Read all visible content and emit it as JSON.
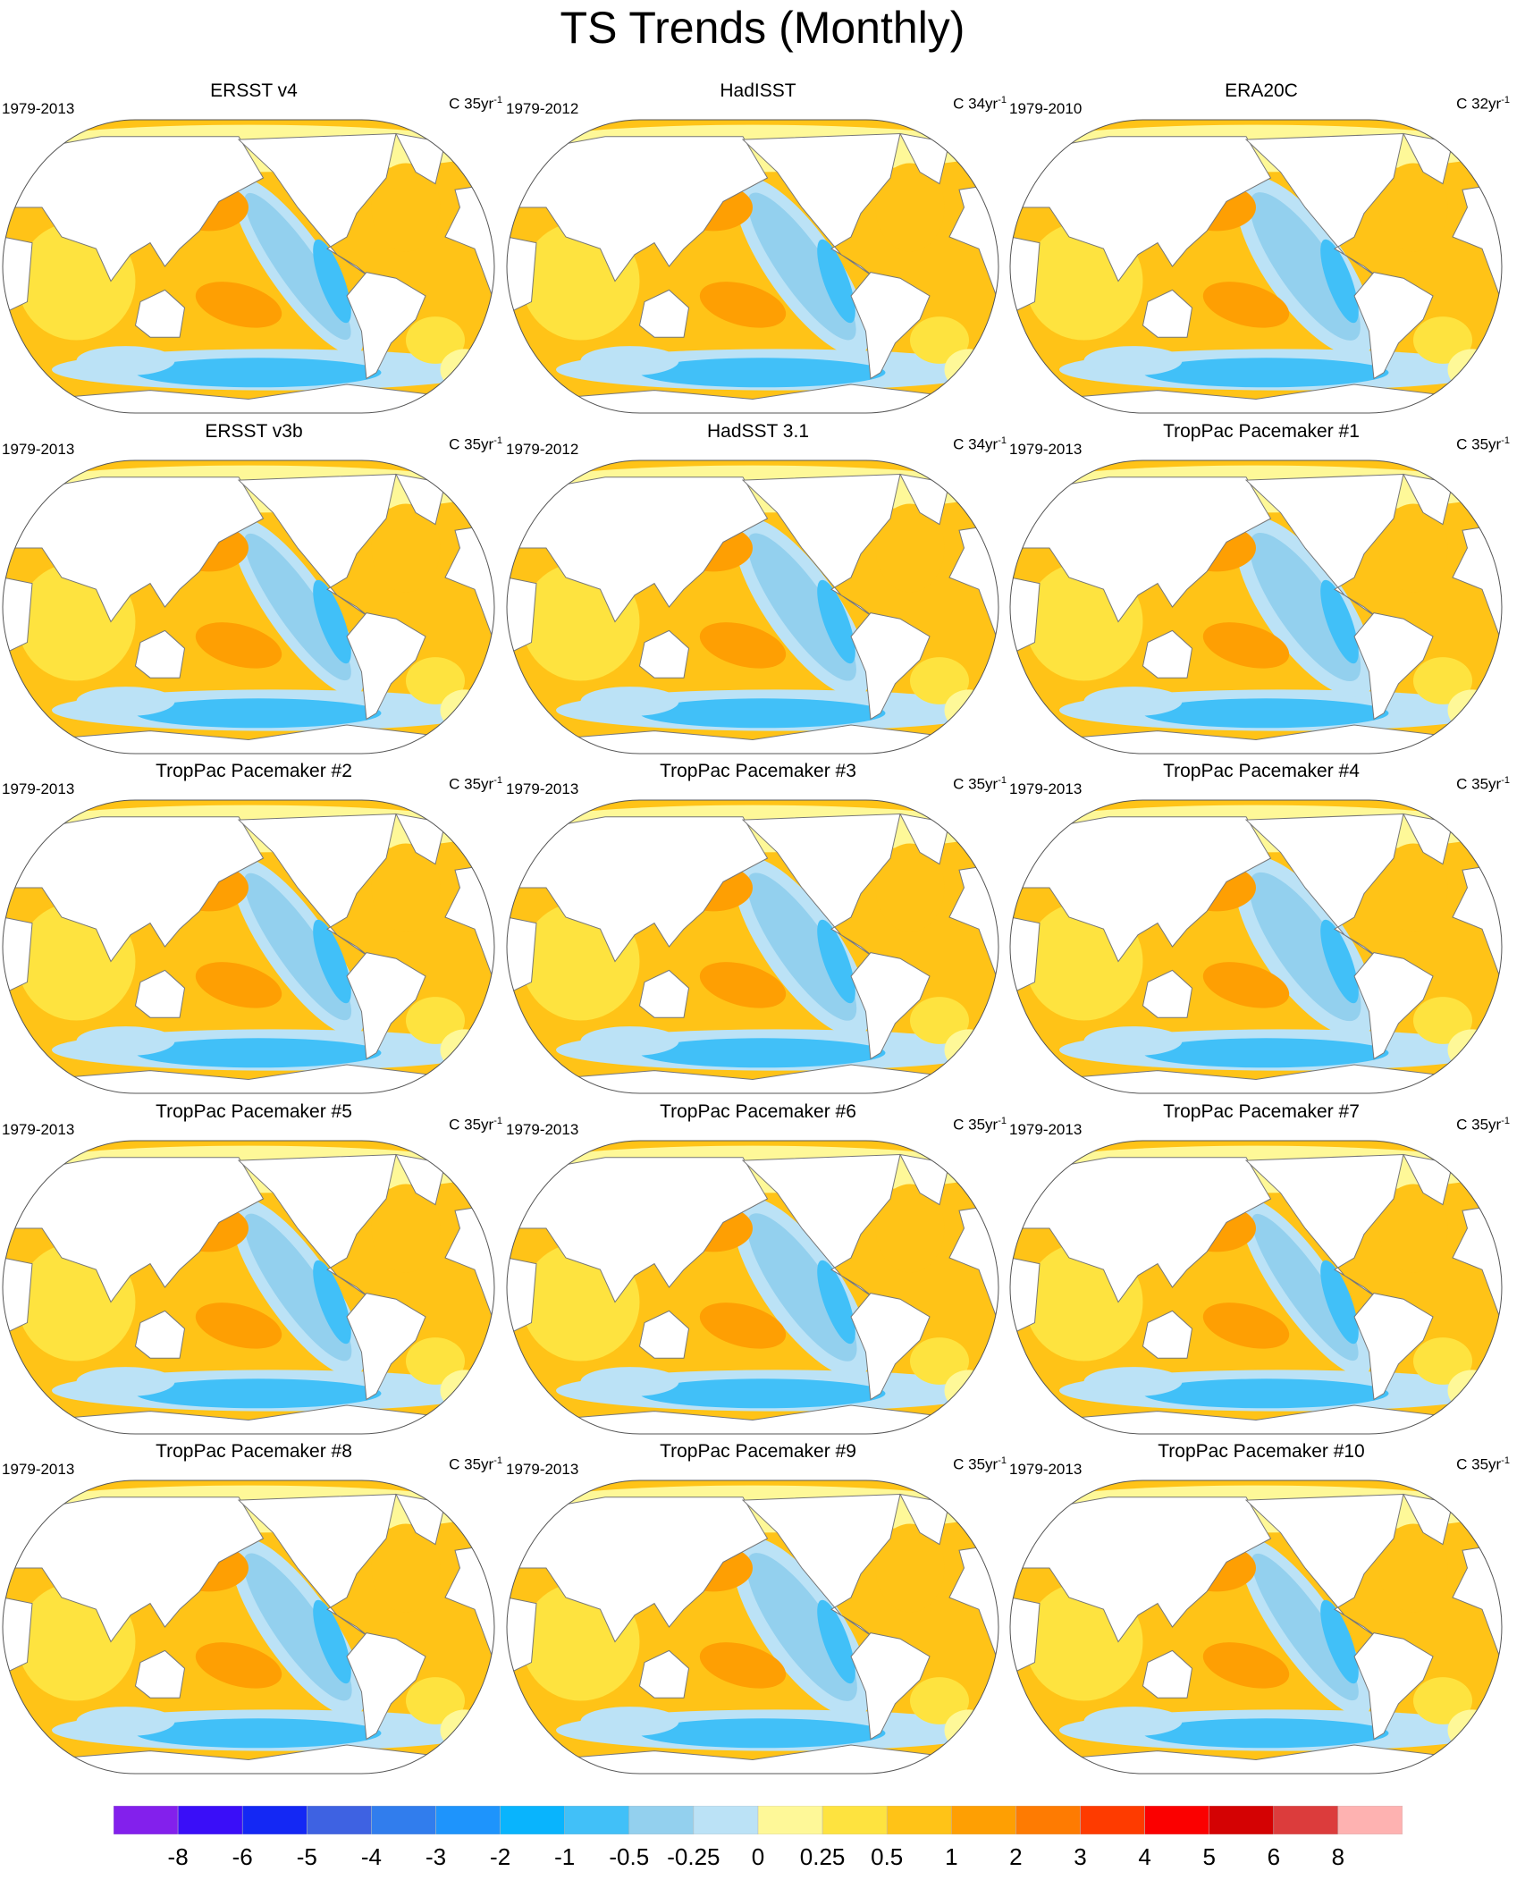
{
  "title": "TS Trends (Monthly)",
  "panels": [
    {
      "title": "ERSST v4",
      "period": "1979-2013",
      "units": "C 35yr",
      "units_exp": "-1"
    },
    {
      "title": "HadISST",
      "period": "1979-2012",
      "units": "C 34yr",
      "units_exp": "-1"
    },
    {
      "title": "ERA20C",
      "period": "1979-2010",
      "units": "C 32yr",
      "units_exp": "-1"
    },
    {
      "title": "ERSST v3b",
      "period": "1979-2013",
      "units": "C 35yr",
      "units_exp": "-1"
    },
    {
      "title": "HadSST 3.1",
      "period": "1979-2012",
      "units": "C 34yr",
      "units_exp": "-1"
    },
    {
      "title": "TropPac Pacemaker #1",
      "period": "1979-2013",
      "units": "C 35yr",
      "units_exp": "-1"
    },
    {
      "title": "TropPac Pacemaker #2",
      "period": "1979-2013",
      "units": "C 35yr",
      "units_exp": "-1"
    },
    {
      "title": "TropPac Pacemaker #3",
      "period": "1979-2013",
      "units": "C 35yr",
      "units_exp": "-1"
    },
    {
      "title": "TropPac Pacemaker #4",
      "period": "1979-2013",
      "units": "C 35yr",
      "units_exp": "-1"
    },
    {
      "title": "TropPac Pacemaker #5",
      "period": "1979-2013",
      "units": "C 35yr",
      "units_exp": "-1"
    },
    {
      "title": "TropPac Pacemaker #6",
      "period": "1979-2013",
      "units": "C 35yr",
      "units_exp": "-1"
    },
    {
      "title": "TropPac Pacemaker #7",
      "period": "1979-2013",
      "units": "C 35yr",
      "units_exp": "-1"
    },
    {
      "title": "TropPac Pacemaker #8",
      "period": "1979-2013",
      "units": "C 35yr",
      "units_exp": "-1"
    },
    {
      "title": "TropPac Pacemaker #9",
      "period": "1979-2013",
      "units": "C 35yr",
      "units_exp": "-1"
    },
    {
      "title": "TropPac Pacemaker #10",
      "period": "1979-2013",
      "units": "C 35yr",
      "units_exp": "-1"
    }
  ],
  "chart_data": {
    "type": "heatmap",
    "title": "TS Trends (Monthly)",
    "projection": "robinson, pacific-centered",
    "colorbar": {
      "placement": "bottom",
      "labels": [
        "-8",
        "-6",
        "-5",
        "-4",
        "-3",
        "-2",
        "-1",
        "-0.5",
        "-0.25",
        "0",
        "0.25",
        "0.5",
        "1",
        "2",
        "3",
        "4",
        "5",
        "6",
        "8"
      ],
      "levels": [
        -8,
        -6,
        -5,
        -4,
        -3,
        -2,
        -1,
        -0.5,
        -0.25,
        0,
        0.25,
        0.5,
        1,
        2,
        3,
        4,
        5,
        6,
        8
      ],
      "colors": [
        "#8320ec",
        "#3a0ef8",
        "#1428f4",
        "#3e62e2",
        "#317ded",
        "#1e94fc",
        "#09b4fd",
        "#41c0f8",
        "#93d0ee",
        "#bbe2f6",
        "#fef898",
        "#fee33f",
        "#ffc317",
        "#fe9f03",
        "#fe7b02",
        "#fe3b00",
        "#fb0000",
        "#d40203",
        "#dc3c3c",
        "#feb2b1"
      ]
    }
  }
}
